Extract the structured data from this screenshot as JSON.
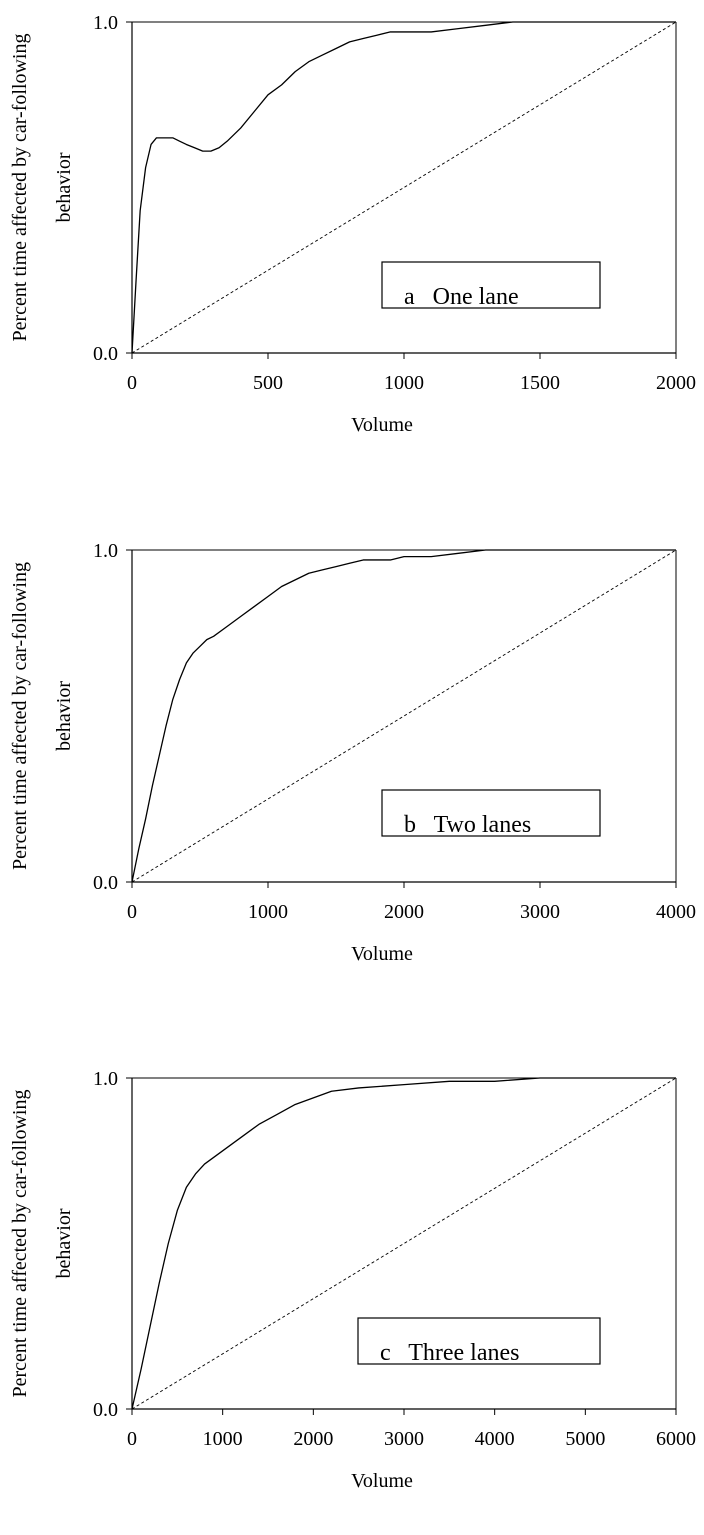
{
  "chart_data": [
    {
      "type": "line",
      "panel_label": "a   One lane",
      "xlabel": "Volume",
      "ylabel_line1": "Percent time affected by car-following",
      "ylabel_line2": "behavior",
      "xlim": [
        0,
        2000
      ],
      "ylim": [
        0.0,
        1.0
      ],
      "x_ticks": [
        "0",
        "500",
        "1000",
        "1500",
        "2000"
      ],
      "y_ticks": [
        "0.0",
        "1.0"
      ],
      "grid": false,
      "series": [
        {
          "style": "solid",
          "x": [
            0,
            15,
            30,
            50,
            70,
            90,
            110,
            130,
            150,
            175,
            200,
            230,
            260,
            290,
            320,
            350,
            400,
            450,
            500,
            550,
            600,
            650,
            700,
            750,
            800,
            850,
            900,
            950,
            1000,
            1050,
            1100,
            1200,
            1300,
            1400,
            1500,
            2000
          ],
          "y": [
            0.0,
            0.22,
            0.43,
            0.56,
            0.63,
            0.65,
            0.65,
            0.65,
            0.65,
            0.64,
            0.63,
            0.62,
            0.61,
            0.61,
            0.62,
            0.64,
            0.68,
            0.73,
            0.78,
            0.81,
            0.85,
            0.88,
            0.9,
            0.92,
            0.94,
            0.95,
            0.96,
            0.97,
            0.97,
            0.97,
            0.97,
            0.98,
            0.99,
            1.0,
            1.0,
            1.0
          ]
        },
        {
          "style": "dashed",
          "x": [
            0,
            2000
          ],
          "y": [
            0.0,
            1.0
          ]
        }
      ]
    },
    {
      "type": "line",
      "panel_label": "b   Two lanes",
      "xlabel": "Volume",
      "ylabel_line1": "Percent time affected by car-following",
      "ylabel_line2": "behavior",
      "xlim": [
        0,
        4000
      ],
      "ylim": [
        0.0,
        1.0
      ],
      "x_ticks": [
        "0",
        "1000",
        "2000",
        "3000",
        "4000"
      ],
      "y_ticks": [
        "0.0",
        "1.0"
      ],
      "grid": false,
      "series": [
        {
          "style": "solid",
          "x": [
            0,
            50,
            100,
            150,
            200,
            250,
            300,
            350,
            400,
            450,
            500,
            550,
            600,
            700,
            800,
            900,
            1000,
            1100,
            1200,
            1300,
            1400,
            1500,
            1600,
            1700,
            1800,
            1900,
            2000,
            2200,
            2400,
            2600,
            2800,
            4000
          ],
          "y": [
            0.0,
            0.1,
            0.19,
            0.29,
            0.38,
            0.47,
            0.55,
            0.61,
            0.66,
            0.69,
            0.71,
            0.73,
            0.74,
            0.77,
            0.8,
            0.83,
            0.86,
            0.89,
            0.91,
            0.93,
            0.94,
            0.95,
            0.96,
            0.97,
            0.97,
            0.97,
            0.98,
            0.98,
            0.99,
            1.0,
            1.0,
            1.0
          ]
        },
        {
          "style": "dashed",
          "x": [
            0,
            4000
          ],
          "y": [
            0.0,
            1.0
          ]
        }
      ]
    },
    {
      "type": "line",
      "panel_label": "c   Three lanes",
      "xlabel": "Volume",
      "ylabel_line1": "Percent time affected by car-following",
      "ylabel_line2": "behavior",
      "xlim": [
        0,
        6000
      ],
      "ylim": [
        0.0,
        1.0
      ],
      "x_ticks": [
        "0",
        "1000",
        "2000",
        "3000",
        "4000",
        "5000",
        "6000"
      ],
      "y_ticks": [
        "0.0",
        "1.0"
      ],
      "grid": false,
      "series": [
        {
          "style": "solid",
          "x": [
            0,
            100,
            200,
            300,
            400,
            500,
            600,
            700,
            800,
            900,
            1000,
            1100,
            1200,
            1400,
            1600,
            1800,
            2000,
            2200,
            2500,
            3000,
            3500,
            4000,
            4500,
            6000
          ],
          "y": [
            0.0,
            0.12,
            0.25,
            0.38,
            0.5,
            0.6,
            0.67,
            0.71,
            0.74,
            0.76,
            0.78,
            0.8,
            0.82,
            0.86,
            0.89,
            0.92,
            0.94,
            0.96,
            0.97,
            0.98,
            0.99,
            0.99,
            1.0,
            1.0
          ]
        },
        {
          "style": "dashed",
          "x": [
            0,
            6000
          ],
          "y": [
            0.0,
            1.0
          ]
        }
      ]
    }
  ]
}
